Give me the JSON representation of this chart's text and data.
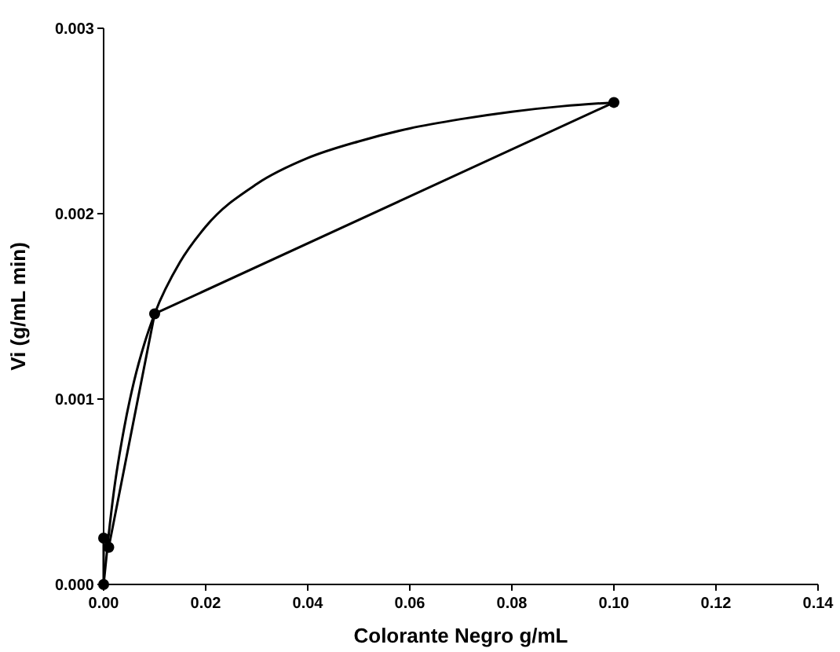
{
  "chart_data": {
    "type": "line",
    "xlabel": "Colorante Negro g/mL",
    "ylabel": "Vi (g/mL min)",
    "xlim": [
      0,
      0.14
    ],
    "ylim": [
      0,
      0.003
    ],
    "xticks": [
      {
        "value": 0,
        "label": "0.00"
      },
      {
        "value": 0.02,
        "label": "0.02"
      },
      {
        "value": 0.04,
        "label": "0.04"
      },
      {
        "value": 0.06,
        "label": "0.06"
      },
      {
        "value": 0.08,
        "label": "0.08"
      },
      {
        "value": 0.1,
        "label": "0.10"
      },
      {
        "value": 0.12,
        "label": "0.12"
      },
      {
        "value": 0.14,
        "label": "0.14"
      }
    ],
    "yticks": [
      {
        "value": 0,
        "label": "0.000"
      },
      {
        "value": 0.001,
        "label": "0.001"
      },
      {
        "value": 0.002,
        "label": "0.002"
      },
      {
        "value": 0.003,
        "label": "0.003"
      }
    ],
    "grid": false,
    "series": [
      {
        "color": "#000000",
        "marker": "circle",
        "x": [
          0,
          0,
          0.001,
          0.01,
          0.1
        ],
        "values": [
          0,
          0.00025,
          0.0002,
          0.00146,
          0.0026
        ]
      },
      {
        "color": "#000000",
        "marker": "none",
        "x": [
          0,
          0.001,
          0.002,
          0.004,
          0.006,
          0.008,
          0.01,
          0.015,
          0.02,
          0.03,
          0.04,
          0.05,
          0.06,
          0.07,
          0.08,
          0.09,
          0.1
        ],
        "values": [
          0,
          0.00027,
          0.0005,
          0.00084,
          0.0011,
          0.0013,
          0.00146,
          0.00174,
          0.00193,
          0.00216,
          0.0023,
          0.00239,
          0.00246,
          0.00251,
          0.00255,
          0.00258,
          0.0026
        ]
      }
    ]
  }
}
